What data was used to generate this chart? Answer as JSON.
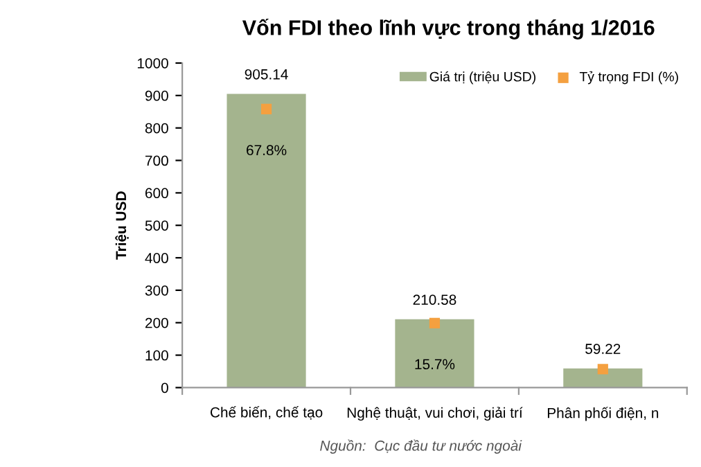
{
  "chart_data": {
    "type": "bar",
    "title": "Vốn FDI theo lĩnh vực trong tháng 1/2016",
    "ylabel": "Triệu USD",
    "categories": [
      "Chế biến, chế tạo",
      "Nghệ thuật, vui chơi, giải trí",
      "Phân phối điện, n"
    ],
    "series": [
      {
        "name": "Giá trị (triệu USD)",
        "color": "#a4b48e",
        "values": [
          905.14,
          210.58,
          59.22
        ]
      },
      {
        "name": "Tỷ trọng FDI (%)",
        "type": "scatter",
        "axis": "y2",
        "color": "#f4a040",
        "values": [
          67.8,
          15.7,
          4.5
        ],
        "value_labels": [
          "67.8%",
          "15.7%",
          null
        ]
      }
    ],
    "ylim": [
      0,
      1000
    ],
    "yticks": [
      0,
      100,
      200,
      300,
      400,
      500,
      600,
      700,
      800,
      900,
      1000
    ],
    "y2lim": [
      0,
      79
    ],
    "data_labels": true,
    "marker": "square",
    "grid": false,
    "legend": "top right",
    "annotations": [
      "Nguồn:  Cục đầu tư nước ngoài"
    ]
  }
}
